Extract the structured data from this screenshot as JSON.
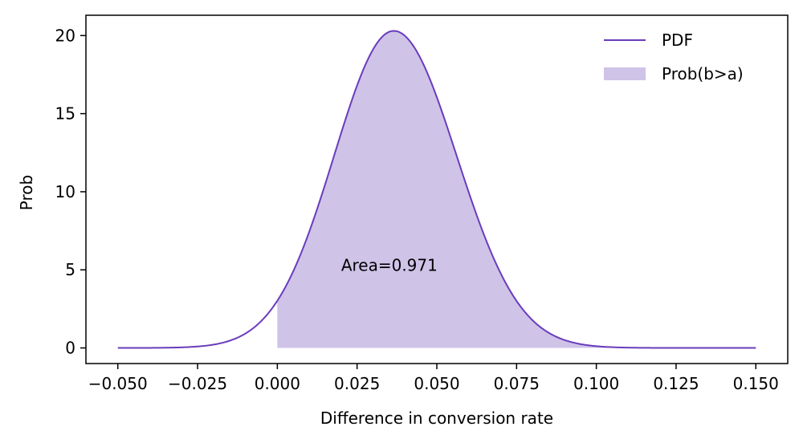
{
  "chart_data": {
    "type": "area",
    "xlabel": "Difference in conversion rate",
    "ylabel": "Prob",
    "xlim": [
      -0.06,
      0.16
    ],
    "ylim": [
      -1.0,
      21.3
    ],
    "xticks": [
      -0.05,
      -0.025,
      0.0,
      0.025,
      0.05,
      0.075,
      0.1,
      0.125,
      0.15
    ],
    "xtick_labels": [
      "−0.050",
      "−0.025",
      "0.000",
      "0.025",
      "0.050",
      "0.075",
      "0.100",
      "0.125",
      "0.150"
    ],
    "yticks": [
      0,
      5,
      10,
      15,
      20
    ],
    "ytick_labels": [
      "0",
      "5",
      "10",
      "15",
      "20"
    ],
    "grid": false,
    "legend_position": "top-right",
    "series": [
      {
        "name": "PDF",
        "kind": "line",
        "color": "#6a3cbd",
        "distribution": {
          "mean": 0.0365,
          "peak": 20.3,
          "sd_left": 0.0187,
          "sd_right": 0.0197
        },
        "x_range": [
          -0.05,
          0.15
        ]
      },
      {
        "name": "Prob(b>a)",
        "kind": "fill",
        "color": "#cfc3e8",
        "fill_from_x": 0.0
      }
    ],
    "annotations": [
      {
        "text": "Area=0.971",
        "x": 0.02,
        "y": 5.3
      }
    ]
  }
}
